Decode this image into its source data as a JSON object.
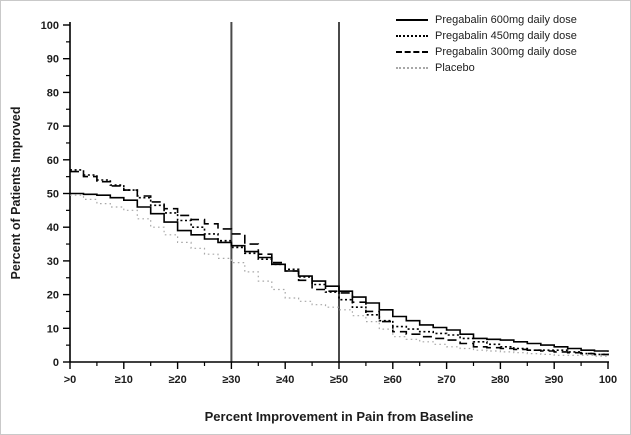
{
  "chart_data": {
    "type": "line",
    "title": "",
    "xlabel": "Percent Improvement in Pain from Baseline",
    "ylabel": "Percent of Patients Improved",
    "xlim": [
      0,
      100
    ],
    "ylim": [
      0,
      100
    ],
    "grid": false,
    "legend_position": "top-right",
    "curve_style": "step-after",
    "x": [
      0,
      5,
      10,
      15,
      20,
      25,
      30,
      35,
      40,
      45,
      50,
      55,
      60,
      65,
      70,
      75,
      80,
      85,
      90,
      95,
      100
    ],
    "xtick_values": [
      0,
      10,
      20,
      30,
      40,
      50,
      60,
      70,
      80,
      90,
      100
    ],
    "xtick_labels": [
      ">0",
      "≥10",
      "≥20",
      "≥30",
      "≥40",
      "≥50",
      "≥60",
      "≥70",
      "≥80",
      "≥90",
      "100"
    ],
    "ytick_values": [
      0,
      10,
      20,
      30,
      40,
      50,
      60,
      70,
      80,
      90,
      100
    ],
    "ytick_labels": [
      "0",
      "10",
      "20",
      "30",
      "40",
      "50",
      "60",
      "70",
      "80",
      "90",
      "100"
    ],
    "minor_tick_step": 5,
    "reference_lines_x": [
      30,
      50
    ],
    "reference_line_color": "#4a4a4a",
    "axis_color": "#000000",
    "series": [
      {
        "name": "Pregabalin 600mg daily dose",
        "line_style": "solid",
        "color": "#000000",
        "width": 1.6,
        "values": [
          50,
          49.5,
          48,
          44,
          39,
          36.5,
          34.5,
          31,
          27,
          24,
          21,
          17.5,
          13.5,
          11,
          9.5,
          7,
          6.5,
          5.5,
          4.5,
          3.5,
          3
        ]
      },
      {
        "name": "Pregabalin 450mg daily dose",
        "line_style": "dense-dotted",
        "color": "#000000",
        "width": 1.6,
        "values": [
          57,
          54,
          51,
          46.5,
          42,
          38,
          34,
          30.5,
          27.5,
          23,
          18.5,
          14,
          10.5,
          9,
          8,
          6,
          4.5,
          3.5,
          3.5,
          2.5,
          2
        ]
      },
      {
        "name": "Pregabalin 300mg daily dose",
        "line_style": "dashed",
        "color": "#000000",
        "width": 1.6,
        "values": [
          56.5,
          53.5,
          51,
          47.5,
          43.5,
          41,
          38,
          32,
          27,
          21.5,
          20.5,
          15,
          9,
          7.5,
          6.5,
          4.5,
          4,
          3.5,
          3,
          2.5,
          2
        ]
      },
      {
        "name": "Placebo",
        "line_style": "fine-dotted",
        "color": "#a8a8a8",
        "width": 1.2,
        "values": [
          49.5,
          47,
          45,
          40,
          35.5,
          32,
          29.5,
          24,
          19,
          17,
          15.5,
          12,
          7.5,
          6,
          4.5,
          3.5,
          3,
          2.5,
          2,
          2,
          1.5
        ]
      }
    ]
  }
}
